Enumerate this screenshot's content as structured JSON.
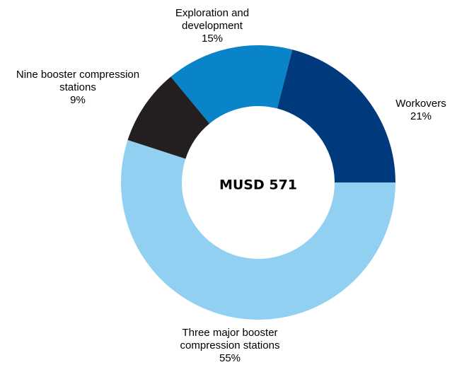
{
  "chart_data": {
    "type": "donut",
    "center_label": "MUSD 571",
    "categories": [
      "Three major booster compression stations",
      "Nine booster compression stations",
      "Exploration and development",
      "Workovers"
    ],
    "values": [
      55,
      9,
      15,
      21
    ],
    "value_labels": [
      "55%",
      "9%",
      "15%",
      "21%"
    ],
    "colors": [
      "#92d0f2",
      "#231f20",
      "#0a84c8",
      "#003a7d"
    ]
  }
}
